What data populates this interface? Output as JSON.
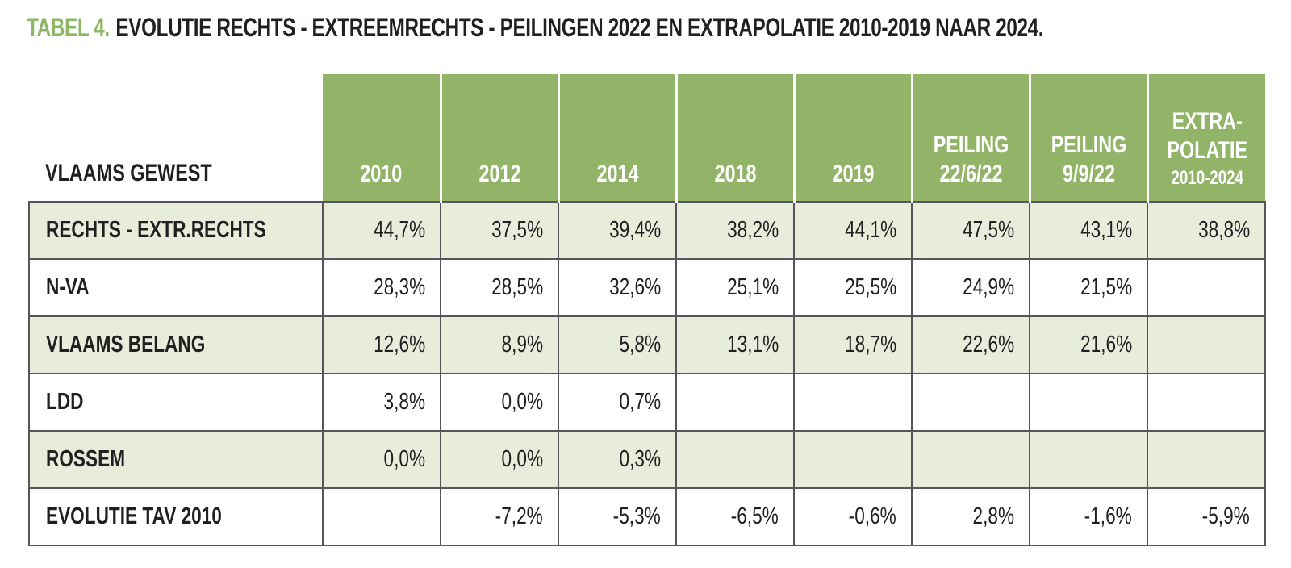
{
  "title": {
    "prefix": "TABEL 4.",
    "text": "EVOLUTIE RECHTS - EXTREEMRECHTS - PEILINGEN 2022 EN EXTRAPOLATIE 2010-2019 NAAR 2024."
  },
  "colors": {
    "title_accent_green": "#8cb764",
    "header_green": "#91b469",
    "row_shade_green": "#e7ecdb",
    "table_border_gray": "#54565a",
    "header_text": "#ffffff",
    "body_text": "#231f20"
  },
  "table": {
    "corner_label": "VLAAMS GEWEST",
    "columns": [
      {
        "lines": [
          "2010"
        ]
      },
      {
        "lines": [
          "2012"
        ]
      },
      {
        "lines": [
          "2014"
        ]
      },
      {
        "lines": [
          "2018"
        ]
      },
      {
        "lines": [
          "2019"
        ]
      },
      {
        "lines": [
          "PEILING",
          "22/6/22"
        ]
      },
      {
        "lines": [
          "PEILING",
          "9/9/22"
        ]
      },
      {
        "lines": [
          "EXTRA-",
          "POLATIE"
        ],
        "sub": "2010-2024"
      }
    ],
    "rows": [
      {
        "label": "RECHTS - EXTR.RECHTS",
        "values": [
          "44,7%",
          "37,5%",
          "39,4%",
          "38,2%",
          "44,1%",
          "47,5%",
          "43,1%",
          "38,8%"
        ]
      },
      {
        "label": "N-VA",
        "values": [
          "28,3%",
          "28,5%",
          "32,6%",
          "25,1%",
          "25,5%",
          "24,9%",
          "21,5%",
          ""
        ]
      },
      {
        "label": "VLAAMS BELANG",
        "values": [
          "12,6%",
          "8,9%",
          "5,8%",
          "13,1%",
          "18,7%",
          "22,6%",
          "21,6%",
          ""
        ]
      },
      {
        "label": "LDD",
        "values": [
          "3,8%",
          "0,0%",
          "0,7%",
          "",
          "",
          "",
          "",
          ""
        ]
      },
      {
        "label": "ROSSEM",
        "values": [
          "0,0%",
          "0,0%",
          "0,3%",
          "",
          "",
          "",
          "",
          ""
        ]
      },
      {
        "label": "EVOLUTIE TAV 2010",
        "values": [
          "",
          "-7,2%",
          "-5,3%",
          "-6,5%",
          "-0,6%",
          "2,8%",
          "-1,6%",
          "-5,9%"
        ]
      }
    ]
  }
}
